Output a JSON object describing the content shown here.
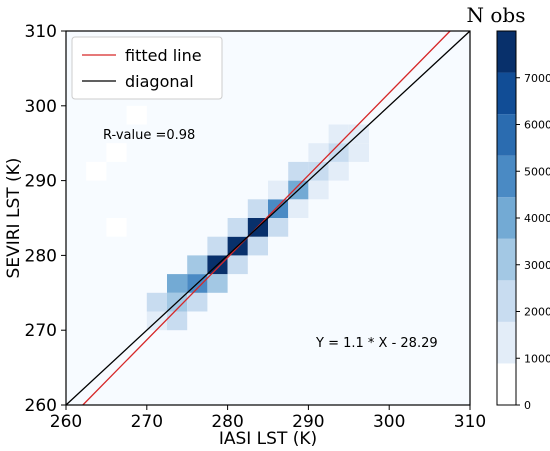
{
  "chart_data": {
    "type": "heatmap",
    "xlabel": "IASI LST (K)",
    "ylabel": "SEVIRI LST (K)",
    "xlim": [
      260,
      310
    ],
    "ylim": [
      260,
      310
    ],
    "x_ticks": [
      260,
      270,
      280,
      290,
      300,
      310
    ],
    "y_ticks": [
      260,
      270,
      280,
      290,
      300,
      310
    ],
    "bin_size": 2.5,
    "annotations": {
      "r_value": "R-value =0.98",
      "equation": "Y = 1.1 * X - 28.29"
    },
    "legend": {
      "placement": "top-left",
      "entries": [
        {
          "label": "fitted line",
          "color": "#d62728"
        },
        {
          "label": "diagonal",
          "color": "#000000"
        }
      ]
    },
    "lines": {
      "fitted": {
        "slope": 1.1,
        "intercept": -28.29,
        "color": "#d62728"
      },
      "diagonal": {
        "slope": 1.0,
        "intercept": 0,
        "color": "#000000"
      }
    },
    "colorbar": {
      "title": "N obs",
      "ticks": [
        0,
        1000,
        2000,
        3000,
        4000,
        5000,
        6000,
        7000
      ],
      "max": 8000,
      "levels": [
        "#ffffff",
        "#e3edf8",
        "#c8dcf0",
        "#a3c8e4",
        "#73aad4",
        "#4a8ac4",
        "#2b6cb0",
        "#114d96",
        "#08306b"
      ]
    },
    "background_color": "#f7fbff",
    "cells": [
      {
        "x": 270,
        "y": 270,
        "n": 1200
      },
      {
        "x": 272.5,
        "y": 270,
        "n": 1600
      },
      {
        "x": 270,
        "y": 272.5,
        "n": 2100
      },
      {
        "x": 272.5,
        "y": 272.5,
        "n": 2600
      },
      {
        "x": 272.5,
        "y": 275,
        "n": 3900
      },
      {
        "x": 275,
        "y": 272.5,
        "n": 2100
      },
      {
        "x": 275,
        "y": 275,
        "n": 5200
      },
      {
        "x": 275,
        "y": 277.5,
        "n": 2600
      },
      {
        "x": 277.5,
        "y": 275,
        "n": 2600
      },
      {
        "x": 277.5,
        "y": 277.5,
        "n": 7600
      },
      {
        "x": 277.5,
        "y": 280,
        "n": 2300
      },
      {
        "x": 280,
        "y": 277.5,
        "n": 2300
      },
      {
        "x": 280,
        "y": 280,
        "n": 8000
      },
      {
        "x": 280,
        "y": 282.5,
        "n": 2200
      },
      {
        "x": 282.5,
        "y": 280,
        "n": 2200
      },
      {
        "x": 282.5,
        "y": 282.5,
        "n": 8000
      },
      {
        "x": 282.5,
        "y": 285,
        "n": 2100
      },
      {
        "x": 285,
        "y": 282.5,
        "n": 1600
      },
      {
        "x": 285,
        "y": 285,
        "n": 5300
      },
      {
        "x": 285,
        "y": 287.5,
        "n": 1200
      },
      {
        "x": 287.5,
        "y": 285,
        "n": 1000
      },
      {
        "x": 287.5,
        "y": 287.5,
        "n": 3700
      },
      {
        "x": 287.5,
        "y": 290,
        "n": 1700
      },
      {
        "x": 290,
        "y": 287.5,
        "n": 1300
      },
      {
        "x": 290,
        "y": 290,
        "n": 1700
      },
      {
        "x": 290,
        "y": 292.5,
        "n": 1100
      },
      {
        "x": 292.5,
        "y": 290,
        "n": 1100
      },
      {
        "x": 292.5,
        "y": 292.5,
        "n": 1700
      },
      {
        "x": 292.5,
        "y": 295,
        "n": 1200
      },
      {
        "x": 295,
        "y": 292.5,
        "n": 1200
      },
      {
        "x": 295,
        "y": 295,
        "n": 1000
      },
      {
        "x": 262.5,
        "y": 290,
        "n": 200
      },
      {
        "x": 265,
        "y": 292.5,
        "n": 200
      },
      {
        "x": 267.5,
        "y": 297.5,
        "n": 200
      },
      {
        "x": 265,
        "y": 282.5,
        "n": 150
      }
    ]
  }
}
